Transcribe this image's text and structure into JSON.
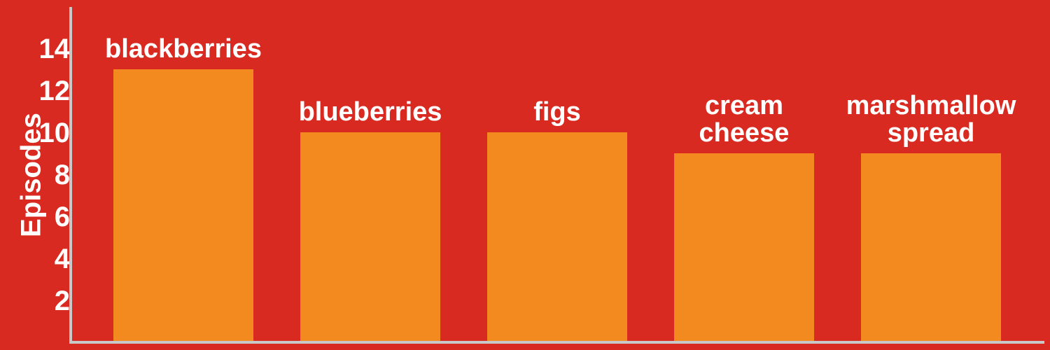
{
  "chart_data": {
    "type": "bar",
    "categories": [
      "blackberries",
      "blueberries",
      "figs",
      "cream cheese",
      "marshmallow spread"
    ],
    "category_label_lines": [
      [
        "blackberries"
      ],
      [
        "blueberries"
      ],
      [
        "figs"
      ],
      [
        "cream",
        "cheese"
      ],
      [
        "marshmallow",
        "spread"
      ]
    ],
    "values": [
      13,
      10,
      10,
      9,
      9
    ],
    "ylabel": "Episodes",
    "xlabel": "",
    "ylim": [
      0,
      16
    ],
    "yticks": [
      2,
      4,
      6,
      8,
      10,
      12,
      14
    ],
    "grid": false,
    "legend": "none"
  },
  "colors": {
    "background": "#D92A22",
    "bar": "#F38A20",
    "axis": "#C8C8C8",
    "text": "#FFFFFF"
  }
}
